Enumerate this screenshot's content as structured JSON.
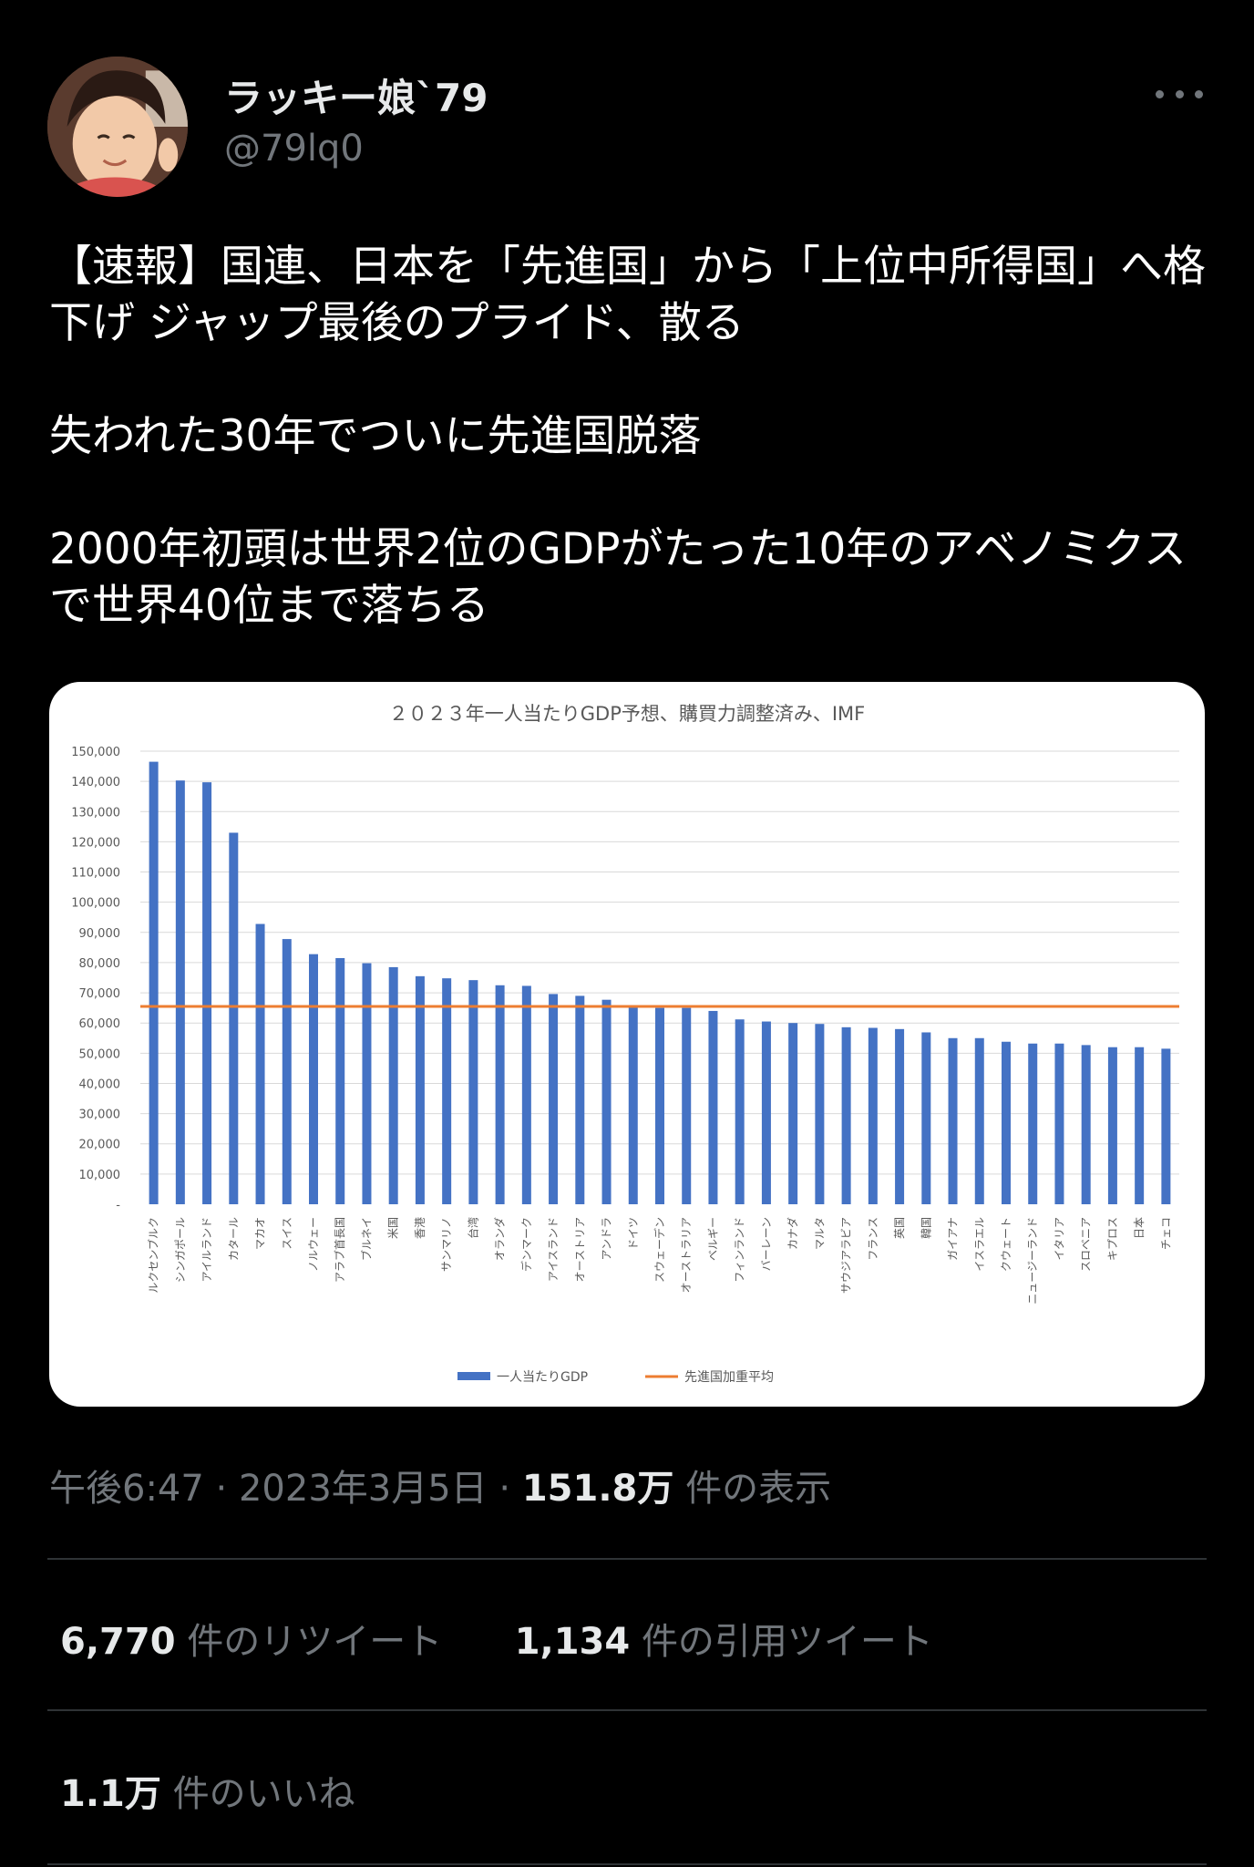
{
  "user": {
    "display_name": "ラッキー娘`79",
    "handle": "@79lq0"
  },
  "tweet": {
    "paragraphs": [
      "【速報】国連、日本を「先進国」から「上位中所得国」へ格下げ ジャップ最後のプライド、散る",
      "失われた30年でついに先進国脱落",
      "2000年初頭は世界2位のGDPがたった10年のアベノミクスで世界40位まで落ちる"
    ]
  },
  "meta": {
    "time": "午後6:47",
    "date": "2023年3月5日",
    "views": "151.8万",
    "views_label": "件の表示",
    "separator": "·"
  },
  "stats": {
    "retweets": {
      "count": "6,770",
      "label": "件のリツイート"
    },
    "quotes": {
      "count": "1,134",
      "label": "件の引用ツイート"
    },
    "likes": {
      "count": "1.1万",
      "label": "件のいいね"
    }
  },
  "chart_data": {
    "type": "bar",
    "title": "２０２３年一人当たりGDP予想、購買力調整済み、IMF",
    "categories": [
      "ルクセンブルク",
      "シンガポール",
      "アイルランド",
      "カタール",
      "マカオ",
      "スイス",
      "ノルウェー",
      "アラブ首長国",
      "ブルネイ",
      "米国",
      "香港",
      "サンマリノ",
      "台湾",
      "オランダ",
      "デンマーク",
      "アイスランド",
      "オーストリア",
      "アンドラ",
      "ドイツ",
      "スウェーデン",
      "オーストラリア",
      "ベルギー",
      "フィンランド",
      "バーレーン",
      "カナダ",
      "マルタ",
      "サウジアラビア",
      "フランス",
      "英国",
      "韓国",
      "ガイアナ",
      "イスラエル",
      "クウェート",
      "ニュージーランド",
      "イタリア",
      "スロベニア",
      "キプロス",
      "日本",
      "チェコ"
    ],
    "series": [
      {
        "name": "一人当たりGDP",
        "type": "bar",
        "color": "#4472c4",
        "values": [
          146500,
          140300,
          139700,
          123000,
          92800,
          87800,
          82800,
          81500,
          79800,
          78500,
          75500,
          74800,
          74200,
          72500,
          72300,
          69600,
          69000,
          67700,
          65300,
          65000,
          65000,
          64000,
          61200,
          60500,
          60000,
          59700,
          58600,
          58400,
          58000,
          56900,
          55000,
          55000,
          53800,
          53200,
          53200,
          52700,
          52000,
          52000,
          51500
        ]
      },
      {
        "name": "先進国加重平均",
        "type": "line",
        "color": "#ed7d31",
        "value": 65500
      }
    ],
    "ylim": [
      0,
      150000
    ],
    "yticks": [
      "-",
      "10,000",
      "20,000",
      "30,000",
      "40,000",
      "50,000",
      "60,000",
      "70,000",
      "80,000",
      "90,000",
      "100,000",
      "110,000",
      "120,000",
      "130,000",
      "140,000",
      "150,000"
    ],
    "grid": true,
    "legend_position": "bottom"
  }
}
